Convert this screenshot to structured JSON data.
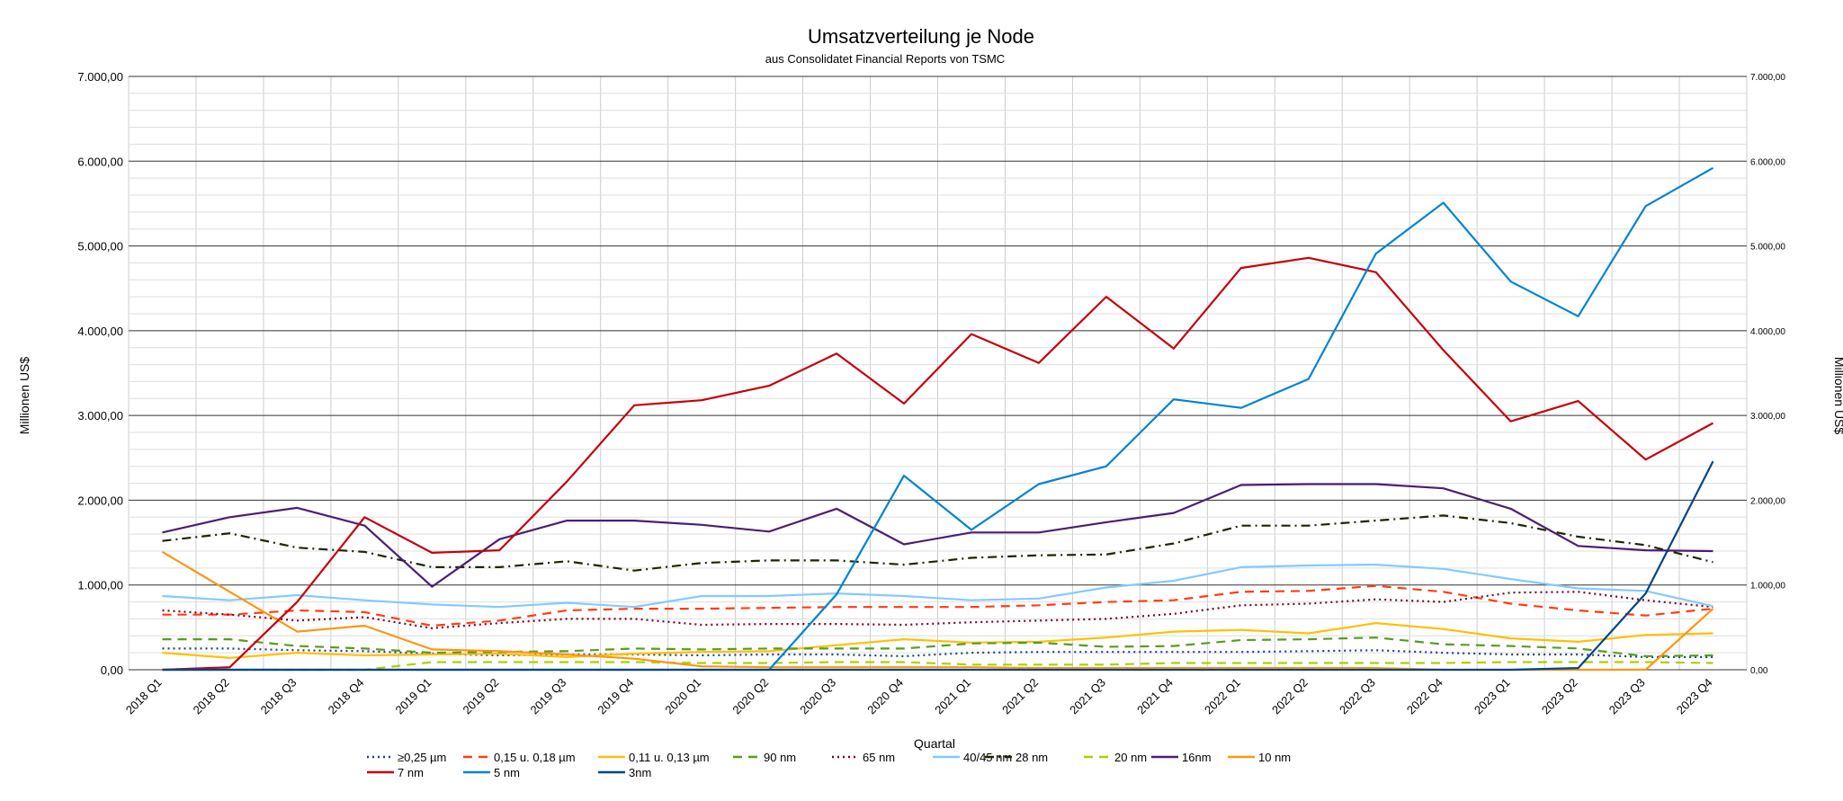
{
  "chart_data": {
    "type": "line",
    "title": "Umsatzverteilung je Node",
    "subtitle": "aus Consolidatet Financial Reports von TSMC",
    "xlabel": "Quartal",
    "ylabel": "Millionen US$",
    "ylabel_right": "Millionen US$",
    "ylim": [
      0,
      7000
    ],
    "y_ticks": [
      "0,00",
      "1.000,00",
      "2.000,00",
      "3.000,00",
      "4.000,00",
      "5.000,00",
      "6.000,00",
      "7.000,00"
    ],
    "grid": true,
    "legend_position": "bottom",
    "categories": [
      "2018 Q1",
      "2018 Q2",
      "2018 Q3",
      "2018 Q4",
      "2019 Q1",
      "2019 Q2",
      "2019 Q3",
      "2019 Q4",
      "2020 Q1",
      "2020 Q2",
      "2020 Q3",
      "2020 Q4",
      "2021 Q1",
      "2021 Q2",
      "2021 Q3",
      "2021 Q4",
      "2022 Q1",
      "2022 Q2",
      "2022 Q3",
      "2022 Q4",
      "2023 Q1",
      "2023 Q2",
      "2023 Q3",
      "2023 Q4"
    ],
    "series": [
      {
        "name": "≥0,25 µm",
        "color": "#1f3f8f",
        "dash": "dotted",
        "values": [
          250,
          250,
          230,
          220,
          190,
          170,
          180,
          180,
          170,
          180,
          180,
          160,
          200,
          210,
          210,
          210,
          210,
          220,
          230,
          200,
          180,
          180,
          150,
          150
        ]
      },
      {
        "name": "0,15 u. 0,18 µm",
        "color": "#ff3c14",
        "dash": "dashed",
        "values": [
          650,
          650,
          700,
          680,
          520,
          580,
          700,
          720,
          720,
          730,
          740,
          740,
          740,
          760,
          800,
          820,
          920,
          930,
          990,
          920,
          780,
          700,
          640,
          720
        ]
      },
      {
        "name": "0,11 u. 0,13 µm",
        "color": "#ffc000",
        "dash": "solid",
        "values": [
          200,
          140,
          200,
          170,
          180,
          190,
          150,
          190,
          210,
          220,
          290,
          360,
          320,
          330,
          380,
          450,
          470,
          430,
          550,
          480,
          370,
          330,
          410,
          430
        ]
      },
      {
        "name": "90 nm",
        "color": "#579d1c",
        "dash": "dashed",
        "values": [
          360,
          360,
          280,
          250,
          200,
          210,
          220,
          250,
          240,
          250,
          250,
          250,
          310,
          320,
          270,
          280,
          350,
          360,
          380,
          300,
          280,
          250,
          160,
          170
        ]
      },
      {
        "name": "65 nm",
        "color": "#7e0021",
        "dash": "dotted",
        "values": [
          700,
          650,
          580,
          620,
          490,
          550,
          600,
          600,
          530,
          540,
          540,
          530,
          560,
          580,
          600,
          660,
          760,
          780,
          830,
          800,
          910,
          920,
          820,
          740
        ]
      },
      {
        "name": "40/45 nm",
        "color": "#83caff",
        "dash": "solid",
        "values": [
          870,
          820,
          880,
          820,
          770,
          740,
          790,
          740,
          870,
          870,
          900,
          870,
          820,
          840,
          970,
          1050,
          1210,
          1230,
          1240,
          1190,
          1070,
          960,
          930,
          750
        ]
      },
      {
        "name": "28 nm",
        "color": "#1a2600",
        "dash": "dashdot",
        "values": [
          1520,
          1610,
          1440,
          1390,
          1210,
          1210,
          1280,
          1170,
          1260,
          1290,
          1290,
          1240,
          1320,
          1350,
          1360,
          1490,
          1700,
          1700,
          1760,
          1820,
          1730,
          1570,
          1470,
          1270
        ]
      },
      {
        "name": "20 nm",
        "color": "#aecf00",
        "dash": "dashed",
        "values": [
          0,
          0,
          0,
          0,
          90,
          90,
          90,
          90,
          80,
          80,
          90,
          90,
          60,
          60,
          60,
          80,
          80,
          80,
          80,
          80,
          90,
          90,
          90,
          80
        ]
      },
      {
        "name": "16nm",
        "color": "#4b1f6f",
        "dash": "solid",
        "values": [
          1620,
          1800,
          1910,
          1700,
          980,
          1540,
          1760,
          1760,
          1710,
          1630,
          1900,
          1480,
          1620,
          1620,
          1740,
          1850,
          2180,
          2190,
          2190,
          2140,
          1900,
          1460,
          1410,
          1400
        ]
      },
      {
        "name": "10 nm",
        "color": "#ff950e",
        "dash": "solid",
        "values": [
          1390,
          920,
          450,
          520,
          240,
          220,
          180,
          130,
          40,
          30,
          30,
          30,
          30,
          20,
          20,
          20,
          20,
          20,
          20,
          0,
          0,
          0,
          0,
          720
        ]
      },
      {
        "name": "7 nm",
        "color": "#c5000b",
        "dash": "solid",
        "values": [
          0,
          30,
          800,
          1800,
          1380,
          1410,
          2220,
          3120,
          3180,
          3350,
          3730,
          3140,
          3960,
          3620,
          4400,
          3790,
          4740,
          4860,
          4690,
          3770,
          2930,
          3170,
          2480,
          2910
        ]
      },
      {
        "name": "5 nm",
        "color": "#0084d1",
        "dash": "solid",
        "values": [
          0,
          0,
          0,
          0,
          0,
          0,
          0,
          0,
          0,
          0,
          890,
          2290,
          1650,
          2190,
          2400,
          3190,
          3090,
          3430,
          4910,
          5510,
          4580,
          4170,
          5470,
          5920
        ]
      },
      {
        "name": "3nm",
        "color": "#004586",
        "dash": "solid",
        "values": [
          0,
          0,
          0,
          0,
          0,
          0,
          0,
          0,
          0,
          0,
          0,
          0,
          0,
          0,
          0,
          0,
          0,
          0,
          0,
          0,
          0,
          20,
          900,
          2460
        ]
      }
    ]
  }
}
